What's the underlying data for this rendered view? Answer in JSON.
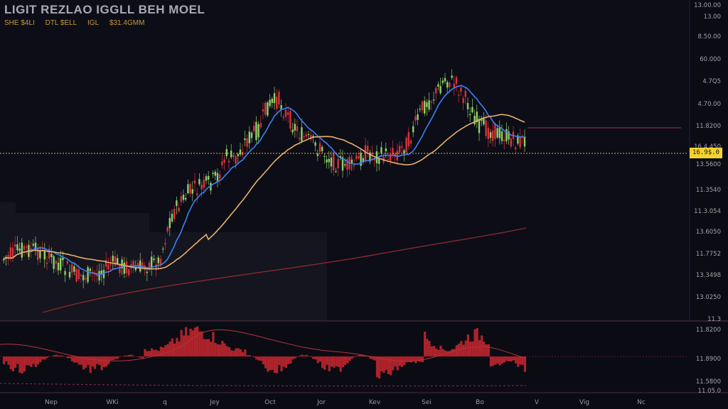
{
  "header": {
    "title": "LIGIT REZLAO IGGLL BEH MOEL",
    "subtitle_parts": [
      "SHE $4LI",
      "DTL $ELL",
      "IGL",
      "$31.4GMM"
    ]
  },
  "price_tag": "16.9$.0",
  "colors": {
    "background": "#0b0b14",
    "up_candle": "#8fd06a",
    "down_candle": "#d8323c",
    "ma_fast": "#3b82f6",
    "ma_slow": "#e8b06a",
    "ma_long": "#8a2a2a",
    "price_line": "#d4b93a",
    "histogram": "#c0262e"
  },
  "chart_data": [
    {
      "type": "candlestick",
      "title": "LIGIT REZLAO IGGLL BEH MOEL",
      "x_tick_labels": [
        "Nep",
        "WKi",
        "q",
        "Jey",
        "Oct",
        "Jor",
        "Kev",
        "Sei",
        "Bo",
        "V",
        "Vig",
        "Nc"
      ],
      "y_tick_labels": [
        "13.00.00",
        "13.00",
        "8.50.00",
        "60.000",
        "4.7Q5",
        "4.70.00",
        "11.8200",
        "16.4.450",
        "13.5600",
        "11.3540",
        "11.3.054",
        "13.6050",
        "11.7752",
        "13.3498",
        "13.0250",
        "11.3"
      ],
      "horizontal_price_line": "16.9$.0",
      "series": [
        {
          "kind": "candles"
        },
        {
          "kind": "moving-average-fast"
        },
        {
          "kind": "moving-average-slow"
        },
        {
          "kind": "moving-average-long"
        }
      ],
      "grid": false
    },
    {
      "type": "histogram",
      "y_tick_labels": [
        "11.8200",
        "11.8900",
        "11.5800",
        "11.05.0"
      ],
      "grid": false
    }
  ]
}
